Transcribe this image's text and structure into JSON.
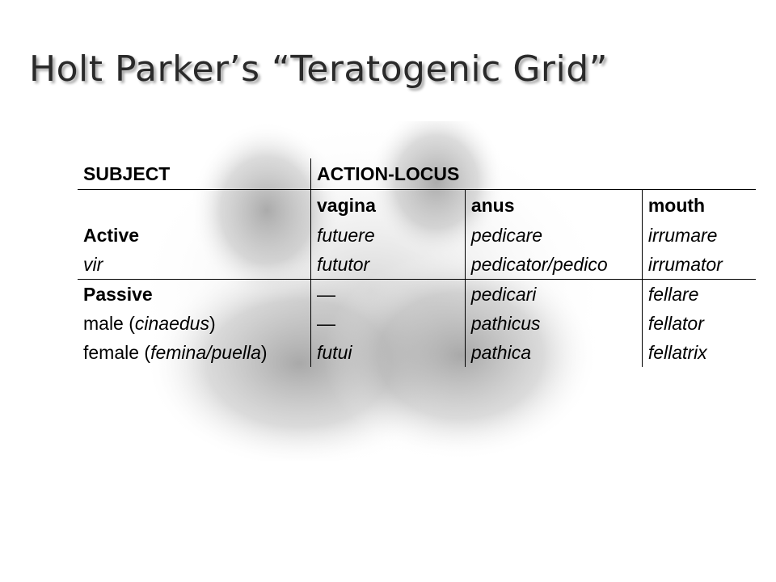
{
  "title": "Holt Parker’s “Teratogenic Grid”",
  "grid": {
    "subject_header": "SUBJECT",
    "action_header": "ACTION-LOCUS",
    "loci": [
      "vagina",
      "anus",
      "mouth"
    ],
    "active": {
      "label": "Active",
      "verbs": [
        "futuere",
        "pedicare",
        "irrumare"
      ]
    },
    "vir": {
      "label": "vir",
      "nouns": [
        "fututor",
        "pedicator/pedico",
        "irrumator"
      ]
    },
    "passive": {
      "label": "Passive",
      "verbs": [
        "—",
        "pedicari",
        "fellare"
      ]
    },
    "male": {
      "label_plain": "male (",
      "label_italic": "cinaedus",
      "label_close": ")",
      "nouns": [
        "—",
        "pathicus",
        "fellator"
      ]
    },
    "female": {
      "label_plain": "female (",
      "label_italic": "femina/puella",
      "label_close": ")",
      "nouns": [
        "futui",
        "pathica",
        "fellatrix"
      ]
    }
  }
}
